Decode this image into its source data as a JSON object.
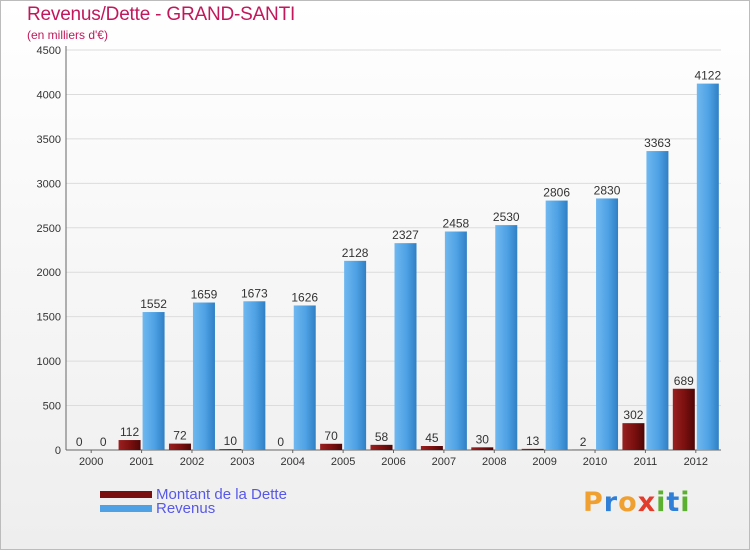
{
  "header": {
    "title": "Revenus/Dette - GRAND-SANTI",
    "subtitle": "(en milliers d'€)"
  },
  "chart_data": {
    "type": "bar",
    "title": "Revenus/Dette - GRAND-SANTI",
    "ylabel": "(en milliers d'€)",
    "xlabel": "",
    "ylim": [
      0,
      4500
    ],
    "yticks": [
      0,
      500,
      1000,
      1500,
      2000,
      2500,
      3000,
      3500,
      4000,
      4500
    ],
    "grid": true,
    "categories": [
      "2000",
      "2001",
      "2002",
      "2003",
      "2004",
      "2005",
      "2006",
      "2007",
      "2008",
      "2009",
      "2010",
      "2011",
      "2012"
    ],
    "series": [
      {
        "name": "Montant de la Dette",
        "color": "#7a0f0f",
        "values": [
          0,
          112,
          72,
          10,
          0,
          70,
          58,
          45,
          30,
          13,
          2,
          302,
          689
        ]
      },
      {
        "name": "Revenus",
        "color": "#4ea1e4",
        "values": [
          0,
          1552,
          1659,
          1673,
          1626,
          2128,
          2327,
          2458,
          2530,
          2806,
          2830,
          3363,
          4122
        ]
      }
    ]
  },
  "legend": {
    "items": [
      {
        "label": "Montant de la Dette",
        "color": "#7a0f0f"
      },
      {
        "label": "Revenus",
        "color": "#4ea1e4"
      }
    ]
  },
  "logo": {
    "text": "Proxiti",
    "letters": [
      "P",
      "r",
      "o",
      "x",
      "i",
      "t",
      "i"
    ],
    "colors": [
      "#f0a030",
      "#2f7fd8",
      "#f0a030",
      "#e23c2c",
      "#5cb030",
      "#2f7fd8",
      "#5cb030"
    ]
  }
}
